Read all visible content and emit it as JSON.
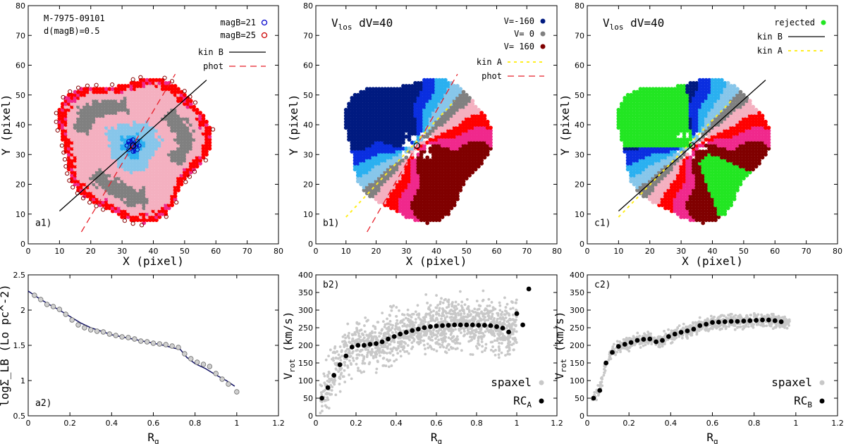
{
  "colors": {
    "navy": "#001a80",
    "blue": "#0a2ee0",
    "sky": "#2ab0f0",
    "lightblue": "#87c6ea",
    "gray": "#808080",
    "pink": "#f4b0c0",
    "red": "#ff0000",
    "magenta": "#f0288c",
    "maroon": "#800000",
    "green": "#22e622",
    "curve": "#0d0d60",
    "scatter": "#c8c8c8",
    "yellow": "#ffee22",
    "phot": "#e8202a"
  },
  "chart_data": [
    {
      "id": "a1",
      "type": "scatter",
      "panel_label": "a1)",
      "xlabel": "X  (pixel)",
      "ylabel": "Y  (pixel)",
      "xlim": [
        0,
        80
      ],
      "ylim": [
        0,
        80
      ],
      "xticks": [
        "0",
        "10",
        "20",
        "30",
        "40",
        "50",
        "60",
        "70",
        "80"
      ],
      "yticks": [
        "0",
        "10",
        "20",
        "30",
        "40",
        "50",
        "60",
        "70",
        "80"
      ],
      "annotations": [
        "M-7975-09101",
        "d(magB)=0.5"
      ],
      "legend": [
        {
          "label": "magB=21",
          "kind": "open-circle",
          "color": "#0000cc"
        },
        {
          "label": "magB=25",
          "kind": "open-circle",
          "color": "#cc0000"
        },
        {
          "label": "kin B",
          "kind": "line",
          "color": "#000000"
        },
        {
          "label": "phot",
          "kind": "dashed",
          "color": "#e8202a"
        }
      ],
      "map": {
        "center": [
          33.5,
          33
        ],
        "radius": 24
      },
      "lines": {
        "kinB": [
          [
            10,
            11
          ],
          [
            57,
            55
          ]
        ],
        "phot": [
          [
            17,
            4
          ],
          [
            47,
            57
          ]
        ]
      }
    },
    {
      "id": "b1",
      "type": "scatter",
      "panel_label": "b1)",
      "xlabel": "X  (pixel)",
      "ylabel": "Y  (pixel)",
      "xlim": [
        0,
        80
      ],
      "ylim": [
        0,
        80
      ],
      "xticks": [
        "0",
        "10",
        "20",
        "30",
        "40",
        "50",
        "60",
        "70",
        "80"
      ],
      "yticks": [
        "0",
        "10",
        "20",
        "30",
        "40",
        "50",
        "60",
        "70",
        "80"
      ],
      "annotations": [
        "V_los",
        "dV=40"
      ],
      "title_main": "V",
      "title_sub": "los",
      "title_rest": "dV=40",
      "legend": [
        {
          "label": "V=-160",
          "kind": "dot",
          "color": "#001a80"
        },
        {
          "label": "V=   0",
          "kind": "dot",
          "color": "#808080"
        },
        {
          "label": "V= 160",
          "kind": "dot",
          "color": "#800000"
        },
        {
          "label": "kin A",
          "kind": "dotted",
          "color": "#ffee22"
        },
        {
          "label": "phot",
          "kind": "dashed",
          "color": "#e8202a"
        }
      ],
      "lines": {
        "kinA": [
          [
            10,
            9
          ],
          [
            46,
            48
          ]
        ],
        "phot": [
          [
            17,
            4
          ],
          [
            47,
            57
          ]
        ]
      }
    },
    {
      "id": "c1",
      "type": "scatter",
      "panel_label": "c1)",
      "xlabel": "X  (pixel)",
      "ylabel": "Y  (pixel)",
      "xlim": [
        0,
        80
      ],
      "ylim": [
        0,
        80
      ],
      "xticks": [
        "0",
        "10",
        "20",
        "30",
        "40",
        "50",
        "60",
        "70",
        "80"
      ],
      "yticks": [
        "0",
        "10",
        "20",
        "30",
        "40",
        "50",
        "60",
        "70",
        "80"
      ],
      "title_main": "V",
      "title_sub": "los",
      "title_rest": "dV=40",
      "legend": [
        {
          "label": "rejected",
          "kind": "dot",
          "color": "#22e622"
        },
        {
          "label": "kin B",
          "kind": "line",
          "color": "#000000"
        },
        {
          "label": "kin A",
          "kind": "dotted",
          "color": "#ffee22"
        }
      ],
      "lines": {
        "kinB": [
          [
            10,
            11
          ],
          [
            57,
            55
          ]
        ],
        "kinA": [
          [
            10,
            9
          ],
          [
            46,
            48
          ]
        ]
      }
    },
    {
      "id": "a2",
      "type": "line",
      "panel_label": "a2)",
      "xlabel_main": "R",
      "xlabel_sub": "g",
      "ylabel": "logΣ_LB (Lo pc^-2)",
      "xlim": [
        0,
        1.2
      ],
      "ylim": [
        0.5,
        2.5
      ],
      "xticks": [
        "0",
        "0.2",
        "0.4",
        "0.6",
        "0.8",
        "1",
        "1.2"
      ],
      "yticks": [
        "0.5",
        "1",
        "1.5",
        "2",
        "2.5"
      ],
      "points_x": [
        0.03,
        0.06,
        0.09,
        0.12,
        0.15,
        0.18,
        0.21,
        0.24,
        0.27,
        0.3,
        0.33,
        0.36,
        0.39,
        0.42,
        0.45,
        0.48,
        0.51,
        0.54,
        0.57,
        0.6,
        0.63,
        0.66,
        0.69,
        0.72,
        0.75,
        0.78,
        0.81,
        0.84,
        0.87,
        0.9,
        0.93,
        0.96,
        1.0
      ],
      "points_y": [
        2.21,
        2.15,
        2.08,
        2.05,
        2.01,
        1.94,
        1.86,
        1.79,
        1.75,
        1.72,
        1.7,
        1.69,
        1.66,
        1.64,
        1.62,
        1.61,
        1.59,
        1.56,
        1.55,
        1.53,
        1.52,
        1.51,
        1.49,
        1.47,
        1.38,
        1.31,
        1.26,
        1.23,
        1.2,
        1.1,
        1.02,
        0.95,
        0.84
      ],
      "fit_x": [
        0.0,
        0.05,
        0.1,
        0.15,
        0.2,
        0.25,
        0.3,
        0.35,
        0.4,
        0.45,
        0.5,
        0.55,
        0.6,
        0.65,
        0.7,
        0.73,
        0.76,
        0.8,
        0.85,
        0.9,
        0.95,
        0.99
      ],
      "fit_y": [
        2.27,
        2.17,
        2.08,
        2.0,
        1.91,
        1.82,
        1.75,
        1.7,
        1.65,
        1.62,
        1.59,
        1.56,
        1.53,
        1.5,
        1.46,
        1.44,
        1.33,
        1.24,
        1.17,
        1.08,
        1.0,
        0.92
      ]
    },
    {
      "id": "b2",
      "type": "scatter",
      "panel_label": "b2)",
      "xlabel_main": "R",
      "xlabel_sub": "g",
      "ylabel_main": "V",
      "ylabel_sub": "rot",
      "ylabel_rest": "(km/s)",
      "xlim": [
        0,
        1.2
      ],
      "ylim": [
        0,
        400
      ],
      "xticks": [
        "0",
        "0.2",
        "0.4",
        "0.6",
        "0.8",
        "1",
        "1.2"
      ],
      "yticks": [
        "0",
        "50",
        "100",
        "150",
        "200",
        "250",
        "300",
        "350",
        "400"
      ],
      "legend": [
        {
          "label": "spaxel",
          "kind": "dot",
          "color": "#c8c8c8"
        },
        {
          "label": "RC_A",
          "kind": "dot",
          "color": "#000000"
        }
      ],
      "rc_x": [
        0.03,
        0.06,
        0.09,
        0.12,
        0.15,
        0.18,
        0.21,
        0.24,
        0.27,
        0.3,
        0.33,
        0.36,
        0.39,
        0.42,
        0.45,
        0.48,
        0.51,
        0.54,
        0.57,
        0.6,
        0.63,
        0.66,
        0.69,
        0.72,
        0.75,
        0.78,
        0.81,
        0.84,
        0.87,
        0.9,
        0.93,
        0.96,
        1.0,
        1.03,
        1.06
      ],
      "rc_y": [
        50,
        80,
        115,
        145,
        170,
        195,
        200,
        200,
        203,
        205,
        210,
        218,
        225,
        232,
        237,
        242,
        246,
        250,
        253,
        255,
        256,
        257,
        258,
        258,
        258,
        258,
        257,
        257,
        256,
        253,
        249,
        238,
        290,
        258,
        360
      ],
      "scatter_spread": 70
    },
    {
      "id": "c2",
      "type": "scatter",
      "panel_label": "c2)",
      "xlabel_main": "R",
      "xlabel_sub": "g",
      "ylabel_main": "V",
      "ylabel_sub": "rot",
      "ylabel_rest": "(km/s)",
      "xlim": [
        0,
        1.2
      ],
      "ylim": [
        0,
        400
      ],
      "xticks": [
        "0",
        "0.2",
        "0.4",
        "0.6",
        "0.8",
        "1",
        "1.2"
      ],
      "yticks": [
        "0",
        "50",
        "100",
        "150",
        "200",
        "250",
        "300",
        "350",
        "400"
      ],
      "legend": [
        {
          "label": "spaxel",
          "kind": "dot",
          "color": "#c8c8c8"
        },
        {
          "label": "RC_B",
          "kind": "dot",
          "color": "#000000"
        }
      ],
      "rc_x": [
        0.03,
        0.06,
        0.09,
        0.12,
        0.15,
        0.18,
        0.21,
        0.24,
        0.27,
        0.3,
        0.33,
        0.36,
        0.39,
        0.42,
        0.45,
        0.48,
        0.51,
        0.54,
        0.57,
        0.6,
        0.63,
        0.66,
        0.69,
        0.72,
        0.75,
        0.78,
        0.81,
        0.84,
        0.87,
        0.9,
        0.93
      ],
      "rc_y": [
        50,
        72,
        150,
        180,
        197,
        203,
        208,
        214,
        217,
        218,
        210,
        214,
        225,
        232,
        237,
        241,
        246,
        256,
        260,
        265,
        266,
        267,
        268,
        268,
        269,
        270,
        271,
        272,
        272,
        270,
        267
      ],
      "scatter_spread": 18
    }
  ]
}
